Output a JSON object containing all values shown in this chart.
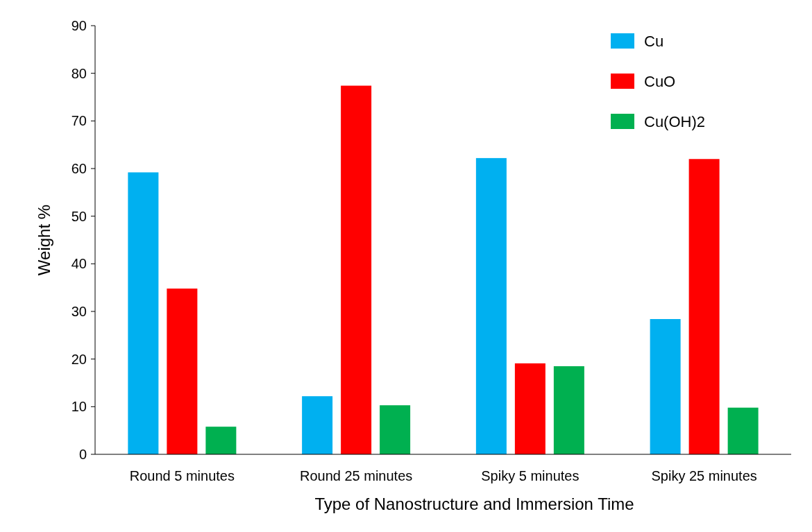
{
  "chart_data": {
    "type": "bar",
    "xlabel": "Type of Nanostructure and Immersion Time",
    "ylabel": "Weight %",
    "categories": [
      "Round 5 minutes",
      "Round 25 minutes",
      "Spiky 5 minutes",
      "Spiky 25 minutes"
    ],
    "series": [
      {
        "name": "Cu",
        "color": "#00b0f0",
        "values": [
          59.2,
          12.2,
          62.2,
          28.4
        ]
      },
      {
        "name": "CuO",
        "color": "#ff0000",
        "values": [
          34.8,
          77.4,
          19.1,
          62.0
        ]
      },
      {
        "name": "Cu(OH)2",
        "color": "#00b050",
        "values": [
          5.8,
          10.3,
          18.5,
          9.8
        ]
      }
    ],
    "ylim": [
      0,
      90
    ],
    "yticks": [
      0,
      10,
      20,
      30,
      40,
      50,
      60,
      70,
      80,
      90
    ],
    "grid": false,
    "legend": "top right"
  }
}
